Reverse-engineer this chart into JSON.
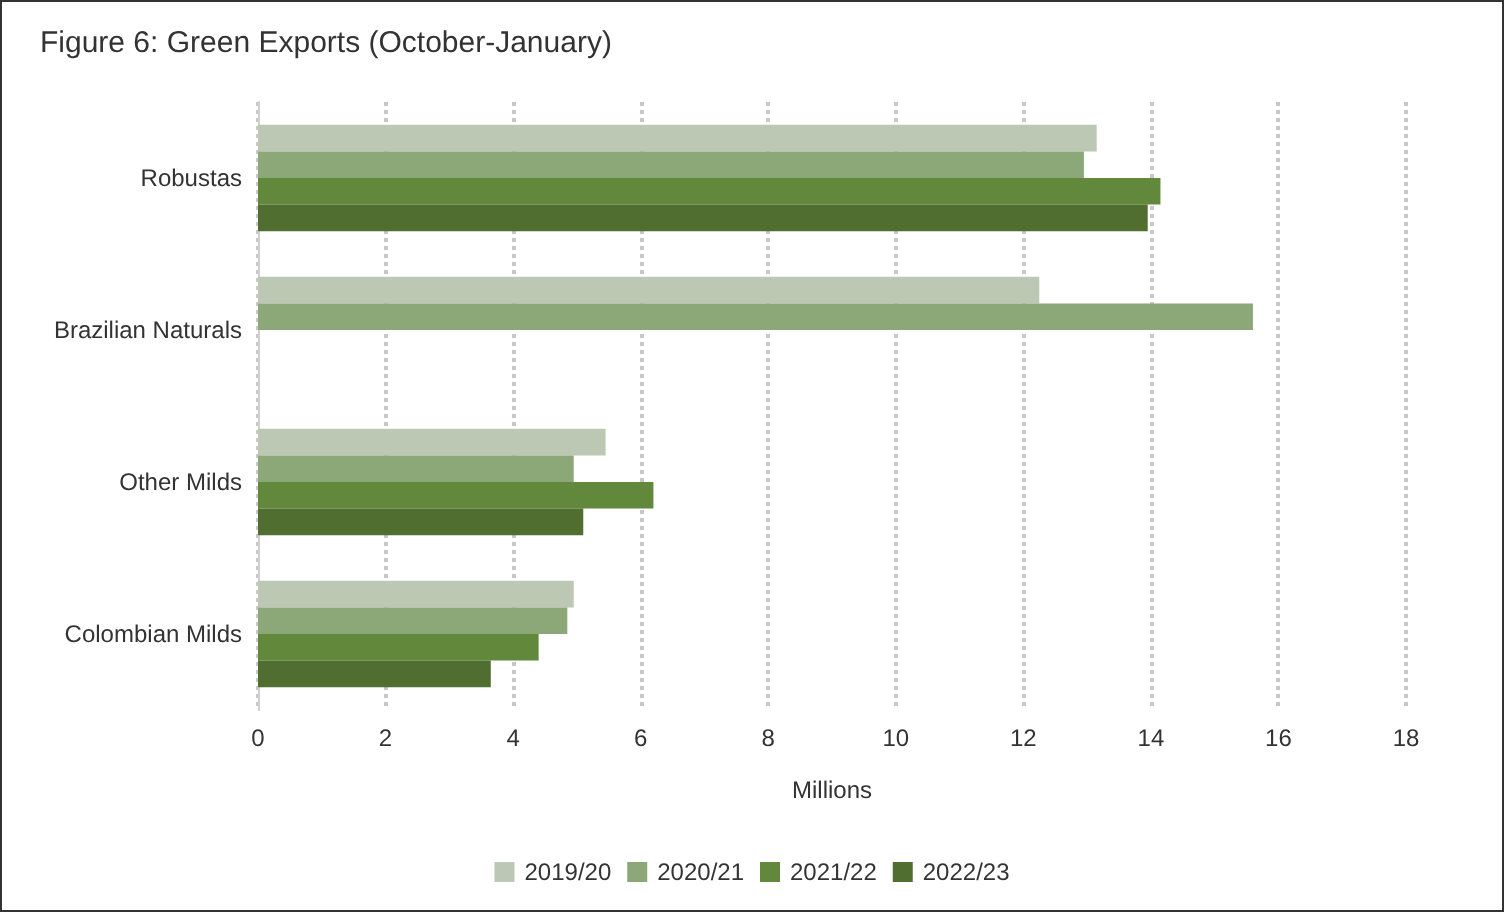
{
  "chart_data": {
    "type": "bar",
    "orientation": "horizontal",
    "title": "Figure 6: Green Exports (October-January)",
    "xlabel": "Millions",
    "categories": [
      "Robustas",
      "Brazilian Naturals",
      "Other Milds",
      "Colombian Milds"
    ],
    "series": [
      {
        "name": "2019/20",
        "color": "#bcc8b3",
        "values": [
          13.15,
          12.25,
          5.45,
          4.95
        ]
      },
      {
        "name": "2020/21",
        "color": "#8ca878",
        "values": [
          12.95,
          15.6,
          4.95,
          4.85
        ]
      },
      {
        "name": "2021/22",
        "color": "#62883c",
        "values": [
          14.15,
          null,
          6.2,
          4.4
        ]
      },
      {
        "name": "2022/23",
        "color": "#4f6e30",
        "values": [
          13.95,
          null,
          5.1,
          3.65
        ]
      }
    ],
    "xlim": [
      0,
      18
    ],
    "xticks": [
      0,
      2,
      4,
      6,
      8,
      10,
      12,
      14,
      16,
      18
    ],
    "grid": "x",
    "legend": "bottom"
  }
}
